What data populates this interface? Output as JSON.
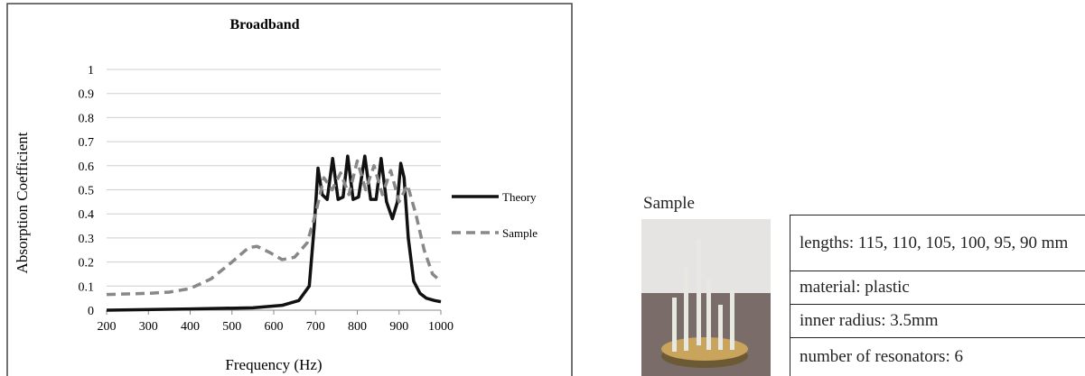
{
  "chart_data": {
    "type": "line",
    "title": "Broadband",
    "x_label": "Frequency (Hz)",
    "y_label": "Absorption Coefficient",
    "xlim": [
      200,
      1000
    ],
    "xticks": [
      200,
      300,
      400,
      500,
      600,
      700,
      800,
      900,
      1000
    ],
    "ylim": [
      0,
      1
    ],
    "yticks": [
      0,
      0.1,
      0.2,
      0.3,
      0.4,
      0.5,
      0.6,
      0.7,
      0.8,
      0.9,
      1
    ],
    "grid": true,
    "legend": "right",
    "series": [
      {
        "name": "Theory",
        "color": "#111111",
        "dash": false,
        "x": [
          200,
          400,
          550,
          620,
          660,
          685,
          697,
          706,
          716,
          728,
          741,
          754,
          766,
          777,
          790,
          803,
          818,
          832,
          845,
          857,
          870,
          884,
          896,
          904,
          912,
          922,
          935,
          950,
          965,
          985,
          1000
        ],
        "values": [
          0,
          0.005,
          0.01,
          0.02,
          0.04,
          0.1,
          0.35,
          0.59,
          0.48,
          0.46,
          0.63,
          0.46,
          0.47,
          0.64,
          0.46,
          0.47,
          0.64,
          0.46,
          0.46,
          0.63,
          0.45,
          0.38,
          0.45,
          0.61,
          0.55,
          0.3,
          0.12,
          0.07,
          0.05,
          0.04,
          0.035
        ]
      },
      {
        "name": "Sample",
        "color": "#888888",
        "dash": true,
        "x": [
          200,
          300,
          350,
          400,
          450,
          500,
          540,
          560,
          590,
          620,
          650,
          680,
          700,
          720,
          740,
          760,
          780,
          800,
          820,
          840,
          860,
          880,
          900,
          920,
          940,
          960,
          980,
          1000
        ],
        "values": [
          0.065,
          0.07,
          0.075,
          0.09,
          0.13,
          0.2,
          0.26,
          0.265,
          0.24,
          0.21,
          0.22,
          0.28,
          0.4,
          0.55,
          0.5,
          0.57,
          0.48,
          0.62,
          0.5,
          0.6,
          0.48,
          0.58,
          0.45,
          0.52,
          0.4,
          0.25,
          0.15,
          0.12
        ]
      }
    ]
  },
  "photo_label": "Sample",
  "table": {
    "rows": [
      "lengths: 115, 110, 105, 100, 95, 90 mm",
      "material: plastic",
      "inner radius: 3.5mm",
      "number of resonators: 6"
    ]
  }
}
